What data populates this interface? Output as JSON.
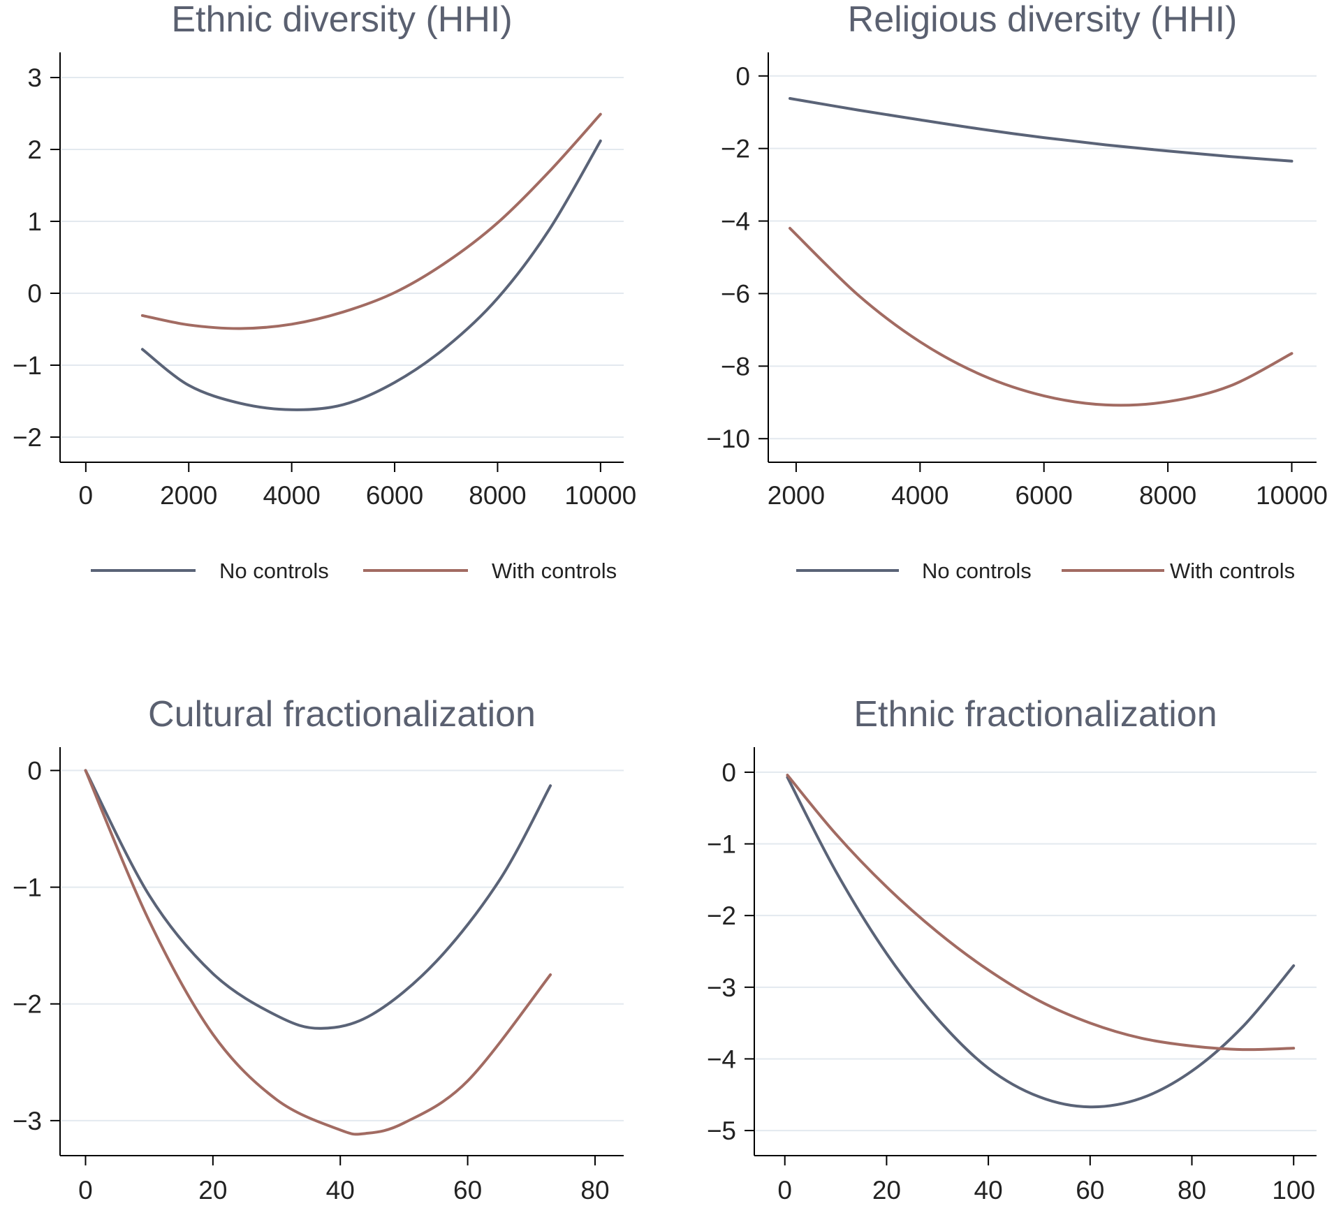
{
  "colors": {
    "no_controls": "#5a6377",
    "with_controls": "#a26b62",
    "grid": "#e3e9ef"
  },
  "chart_data": [
    {
      "type": "line",
      "title": "Ethnic diversity (HHI)",
      "xlabel": "",
      "ylabel": "",
      "xlim": [
        -500,
        10450
      ],
      "ylim": [
        -2.35,
        3.35
      ],
      "xticks": [
        0,
        2000,
        4000,
        6000,
        8000,
        10000
      ],
      "yticks": [
        -2,
        -1,
        0,
        1,
        2,
        3
      ],
      "grid": true,
      "legend": "bottom",
      "series": [
        {
          "name": "No controls",
          "x": [
            1100,
            2000,
            3000,
            4000,
            5000,
            6000,
            7000,
            8000,
            9000,
            10000
          ],
          "y": [
            -0.78,
            -1.28,
            -1.53,
            -1.62,
            -1.55,
            -1.24,
            -0.75,
            -0.07,
            0.88,
            2.12
          ]
        },
        {
          "name": "With controls",
          "x": [
            1100,
            2000,
            3000,
            4000,
            5000,
            6000,
            7000,
            8000,
            9000,
            10000
          ],
          "y": [
            -0.31,
            -0.44,
            -0.49,
            -0.43,
            -0.26,
            0.01,
            0.43,
            0.98,
            1.69,
            2.49
          ]
        }
      ]
    },
    {
      "type": "line",
      "title": "Religious diversity (HHI)",
      "xlabel": "",
      "ylabel": "",
      "xlim": [
        1550,
        10400
      ],
      "ylim": [
        -10.65,
        0.65
      ],
      "xticks": [
        2000,
        4000,
        6000,
        8000,
        10000
      ],
      "yticks": [
        -10,
        -8,
        -6,
        -4,
        -2,
        0
      ],
      "grid": true,
      "legend": "bottom",
      "series": [
        {
          "name": "No controls",
          "x": [
            1900,
            3000,
            4000,
            5000,
            6000,
            7000,
            8000,
            9000,
            10000
          ],
          "y": [
            -0.62,
            -0.94,
            -1.21,
            -1.47,
            -1.7,
            -1.9,
            -2.07,
            -2.22,
            -2.35
          ]
        },
        {
          "name": "With controls",
          "x": [
            1900,
            3000,
            4000,
            5000,
            6000,
            7000,
            8000,
            9000,
            10000
          ],
          "y": [
            -4.2,
            -6.04,
            -7.33,
            -8.25,
            -8.82,
            -9.07,
            -8.98,
            -8.55,
            -7.65
          ]
        }
      ]
    },
    {
      "type": "line",
      "title": "Cultural fractionalization",
      "xlabel": "",
      "ylabel": "",
      "xlim": [
        -4,
        84.5
      ],
      "ylim": [
        -3.3,
        0.2
      ],
      "xticks": [
        0,
        20,
        40,
        60,
        80
      ],
      "yticks": [
        -3,
        -2,
        -1,
        0
      ],
      "grid": true,
      "series": [
        {
          "name": "No controls",
          "x": [
            0,
            10,
            20,
            30,
            37,
            45,
            55,
            65,
            73
          ],
          "y": [
            0.0,
            -1.07,
            -1.74,
            -2.1,
            -2.21,
            -2.09,
            -1.64,
            -0.94,
            -0.13
          ]
        },
        {
          "name": "With controls",
          "x": [
            0,
            10,
            20,
            30,
            40,
            44,
            50,
            60,
            73
          ],
          "y": [
            0.0,
            -1.29,
            -2.26,
            -2.82,
            -3.08,
            -3.11,
            -3.02,
            -2.66,
            -1.75
          ]
        }
      ]
    },
    {
      "type": "line",
      "title": "Ethnic fractionalization",
      "xlabel": "",
      "ylabel": "",
      "xlim": [
        -6,
        104.5
      ],
      "ylim": [
        -5.35,
        0.35
      ],
      "xticks": [
        0,
        20,
        40,
        60,
        80,
        100
      ],
      "yticks": [
        -5,
        -4,
        -3,
        -2,
        -1,
        0
      ],
      "grid": true,
      "series": [
        {
          "name": "No controls",
          "x": [
            0.5,
            10,
            20,
            30,
            40,
            50,
            60,
            70,
            80,
            90,
            100
          ],
          "y": [
            -0.07,
            -1.38,
            -2.53,
            -3.44,
            -4.13,
            -4.53,
            -4.67,
            -4.55,
            -4.17,
            -3.55,
            -2.7
          ]
        },
        {
          "name": "With controls",
          "x": [
            0.5,
            10,
            20,
            30,
            40,
            50,
            60,
            70,
            80,
            90,
            100
          ],
          "y": [
            -0.04,
            -0.86,
            -1.6,
            -2.23,
            -2.76,
            -3.19,
            -3.5,
            -3.71,
            -3.82,
            -3.87,
            -3.85
          ]
        }
      ]
    }
  ]
}
